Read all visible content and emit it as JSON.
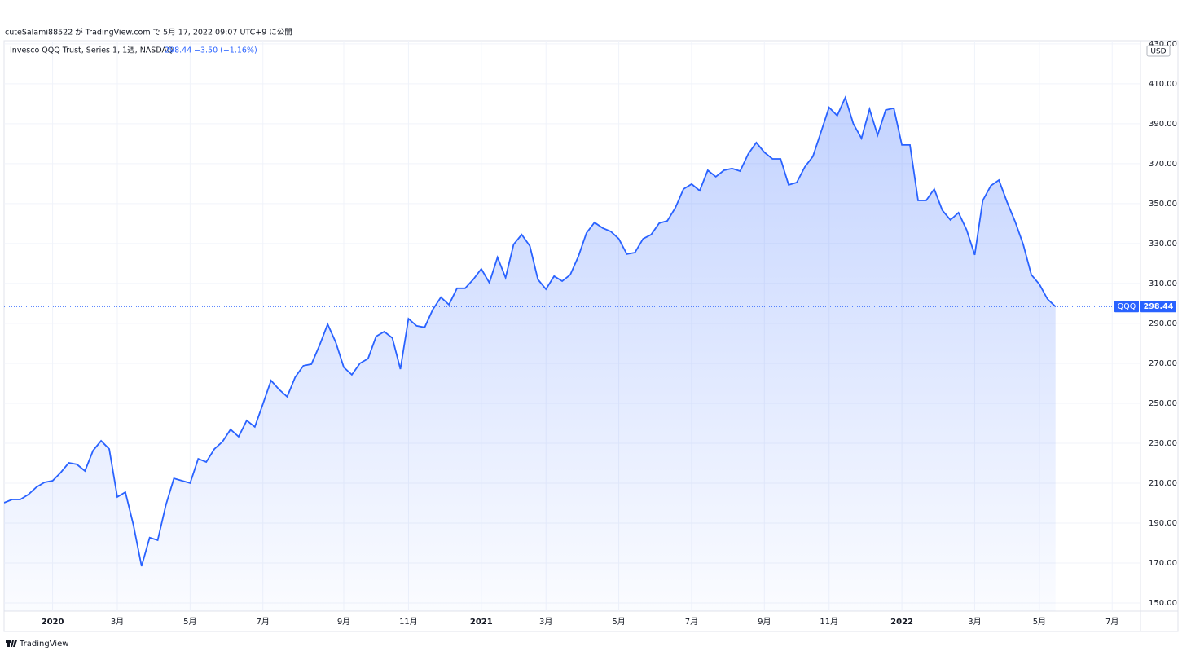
{
  "header": "cuteSalami88522 が TradingView.com で 5月 17, 2022 09:07 UTC+9 に公開",
  "footer": "TradingView",
  "chart_data": {
    "type": "area",
    "title": "Invesco QQQ Trust, Series 1, 1週, NASDAQ",
    "symbol": "QQQ",
    "change": "−3.50 (−1.16%)",
    "currency": "USD",
    "categories": [
      null,
      null,
      null,
      null,
      null,
      null,
      "2020",
      null,
      null,
      null,
      null,
      null,
      null,
      null,
      "3月",
      null,
      null,
      null,
      null,
      null,
      null,
      null,
      null,
      "5月",
      null,
      null,
      null,
      null,
      null,
      null,
      null,
      null,
      "7月",
      null,
      null,
      null,
      null,
      null,
      null,
      null,
      null,
      null,
      "9月",
      null,
      null,
      null,
      null,
      null,
      null,
      null,
      "11月",
      null,
      null,
      null,
      null,
      null,
      null,
      null,
      null,
      "2021",
      null,
      null,
      null,
      null,
      null,
      null,
      null,
      "3月",
      null,
      null,
      null,
      null,
      null,
      null,
      null,
      null,
      "5月",
      null,
      null,
      null,
      null,
      null,
      null,
      null,
      null,
      "7月",
      null,
      null,
      null,
      null,
      null,
      null,
      null,
      null,
      "9月",
      null,
      null,
      null,
      null,
      null,
      null,
      null,
      "11月",
      null,
      null,
      null,
      null,
      null,
      null,
      null,
      null,
      "2022",
      null,
      null,
      null,
      null,
      null,
      null,
      null,
      null,
      "3月",
      null,
      null,
      null,
      null,
      null,
      null,
      null,
      "5月",
      null,
      null,
      null,
      null,
      null,
      null,
      null,
      null,
      "7月",
      null,
      null,
      null
    ],
    "series": [
      {
        "name": "QQQ",
        "color": "#2962ff",
        "values": [
          200.2,
          201.8,
          201.8,
          204.3,
          208,
          210.4,
          211.2,
          215.3,
          220.2,
          219.4,
          216.1,
          226.3,
          231.2,
          227.1,
          203.1,
          205.5,
          188.8,
          168.4,
          182.7,
          181.4,
          199,
          212.4,
          211.2,
          210,
          222.2,
          220.6,
          227.1,
          230.8,
          236.9,
          233.3,
          241.4,
          238.2,
          249.6,
          261.4,
          256.9,
          253.3,
          263.1,
          268.8,
          269.6,
          279,
          289.6,
          280.6,
          268,
          264.3,
          270,
          272.4,
          283.5,
          285.9,
          282.7,
          267.1,
          292.4,
          288.8,
          288,
          296.9,
          303.1,
          299.4,
          307.6,
          307.6,
          312,
          317.3,
          310.4,
          323.1,
          312.9,
          329.6,
          334.5,
          328.8,
          312,
          307.1,
          313.7,
          311.2,
          314.4,
          323.5,
          335.3,
          340.6,
          337.8,
          336.1,
          332.4,
          324.7,
          325.5,
          332.4,
          334.5,
          340.2,
          341.4,
          348,
          357.3,
          359.8,
          356.5,
          366.7,
          363.5,
          366.7,
          367.6,
          366.3,
          374.9,
          380.6,
          375.7,
          372.4,
          372.4,
          359.4,
          360.6,
          368.4,
          373.7,
          385.9,
          398.2,
          394.1,
          403.1,
          390,
          382.7,
          397.3,
          384.3,
          396.9,
          397.8,
          379.4,
          379.4,
          351.6,
          351.6,
          357.3,
          346.7,
          341.8,
          345.5,
          336.9,
          324.3,
          351.6,
          359,
          361.8,
          350.8,
          341,
          329.6,
          314.4,
          309.6,
          302.2,
          298.44,
          null,
          null,
          null,
          null,
          null,
          null,
          null,
          null,
          null,
          null
        ]
      }
    ],
    "ylim": [
      145.9,
      431.6
    ],
    "yticks": [
      {
        "value": 150,
        "label": "150.00"
      },
      {
        "value": 170,
        "label": "170.00"
      },
      {
        "value": 190,
        "label": "190.00"
      },
      {
        "value": 210,
        "label": "210.00"
      },
      {
        "value": 230,
        "label": "230.00"
      },
      {
        "value": 250,
        "label": "250.00"
      },
      {
        "value": 270,
        "label": "270.00"
      },
      {
        "value": 290,
        "label": "290.00"
      },
      {
        "value": 310,
        "label": "310.00"
      },
      {
        "value": 330,
        "label": "330.00"
      },
      {
        "value": 350,
        "label": "350.00"
      },
      {
        "value": 370,
        "label": "370.00"
      },
      {
        "value": 390,
        "label": "390.00"
      },
      {
        "value": 410,
        "label": "410.00"
      },
      {
        "value": 430,
        "label": "430.00"
      }
    ],
    "grid": true
  }
}
